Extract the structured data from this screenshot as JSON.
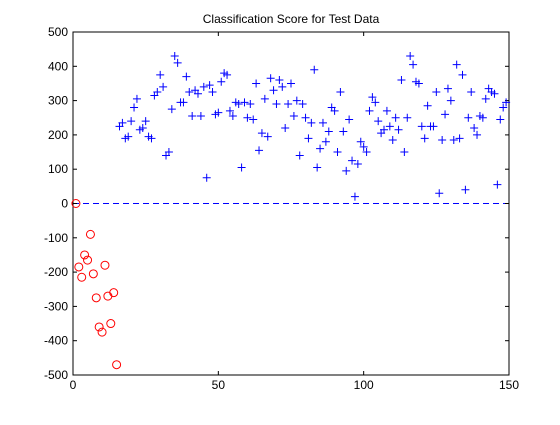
{
  "chart_data": {
    "type": "scatter",
    "title": "Classification Score for Test Data",
    "xlabel": "",
    "ylabel": "",
    "xlim": [
      0,
      150
    ],
    "ylim": [
      -500,
      500
    ],
    "xticks": [
      0,
      50,
      100,
      150
    ],
    "yticks": [
      -500,
      -400,
      -300,
      -200,
      -100,
      0,
      100,
      200,
      300,
      400,
      500
    ],
    "grid": false,
    "legend": "none",
    "reference_line": {
      "y": 0,
      "style": "dashed",
      "color": "#0000ff"
    },
    "series": [
      {
        "marker": "circle",
        "color": "#ff0000",
        "points": [
          [
            1,
            0
          ],
          [
            2,
            -185
          ],
          [
            3,
            -215
          ],
          [
            4,
            -150
          ],
          [
            5,
            -165
          ],
          [
            6,
            -90
          ],
          [
            7,
            -205
          ],
          [
            8,
            -275
          ],
          [
            9,
            -360
          ],
          [
            10,
            -375
          ],
          [
            11,
            -180
          ],
          [
            12,
            -270
          ],
          [
            13,
            -350
          ],
          [
            14,
            -260
          ],
          [
            15,
            -470
          ]
        ]
      },
      {
        "marker": "plus",
        "color": "#0000ff",
        "points": [
          [
            16,
            225
          ],
          [
            17,
            235
          ],
          [
            18,
            190
          ],
          [
            19,
            195
          ],
          [
            20,
            240
          ],
          [
            21,
            280
          ],
          [
            22,
            305
          ],
          [
            23,
            215
          ],
          [
            24,
            220
          ],
          [
            25,
            240
          ],
          [
            26,
            195
          ],
          [
            27,
            190
          ],
          [
            28,
            315
          ],
          [
            29,
            325
          ],
          [
            30,
            375
          ],
          [
            31,
            340
          ],
          [
            32,
            140
          ],
          [
            33,
            150
          ],
          [
            34,
            275
          ],
          [
            35,
            430
          ],
          [
            36,
            410
          ],
          [
            37,
            295
          ],
          [
            38,
            295
          ],
          [
            39,
            370
          ],
          [
            40,
            325
          ],
          [
            41,
            255
          ],
          [
            42,
            330
          ],
          [
            43,
            320
          ],
          [
            44,
            255
          ],
          [
            45,
            340
          ],
          [
            46,
            75
          ],
          [
            47,
            345
          ],
          [
            48,
            325
          ],
          [
            49,
            260
          ],
          [
            50,
            265
          ],
          [
            51,
            355
          ],
          [
            52,
            380
          ],
          [
            53,
            375
          ],
          [
            54,
            270
          ],
          [
            55,
            255
          ],
          [
            56,
            295
          ],
          [
            57,
            290
          ],
          [
            58,
            105
          ],
          [
            59,
            295
          ],
          [
            60,
            250
          ],
          [
            61,
            290
          ],
          [
            62,
            245
          ],
          [
            63,
            350
          ],
          [
            64,
            155
          ],
          [
            65,
            205
          ],
          [
            66,
            305
          ],
          [
            67,
            195
          ],
          [
            68,
            365
          ],
          [
            69,
            330
          ],
          [
            70,
            290
          ],
          [
            71,
            360
          ],
          [
            72,
            340
          ],
          [
            73,
            220
          ],
          [
            74,
            290
          ],
          [
            75,
            350
          ],
          [
            76,
            255
          ],
          [
            77,
            300
          ],
          [
            78,
            140
          ],
          [
            79,
            290
          ],
          [
            80,
            250
          ],
          [
            81,
            190
          ],
          [
            82,
            235
          ],
          [
            83,
            390
          ],
          [
            84,
            105
          ],
          [
            85,
            160
          ],
          [
            86,
            235
          ],
          [
            87,
            180
          ],
          [
            88,
            210
          ],
          [
            89,
            280
          ],
          [
            90,
            270
          ],
          [
            91,
            150
          ],
          [
            92,
            325
          ],
          [
            93,
            210
          ],
          [
            94,
            95
          ],
          [
            95,
            245
          ],
          [
            96,
            125
          ],
          [
            97,
            20
          ],
          [
            98,
            115
          ],
          [
            99,
            180
          ],
          [
            100,
            165
          ],
          [
            101,
            150
          ],
          [
            102,
            270
          ],
          [
            103,
            310
          ],
          [
            104,
            295
          ],
          [
            105,
            240
          ],
          [
            106,
            205
          ],
          [
            107,
            215
          ],
          [
            108,
            270
          ],
          [
            109,
            225
          ],
          [
            110,
            185
          ],
          [
            111,
            250
          ],
          [
            112,
            215
          ],
          [
            113,
            360
          ],
          [
            114,
            150
          ],
          [
            115,
            250
          ],
          [
            116,
            430
          ],
          [
            117,
            405
          ],
          [
            118,
            355
          ],
          [
            119,
            350
          ],
          [
            120,
            225
          ],
          [
            121,
            190
          ],
          [
            122,
            285
          ],
          [
            123,
            225
          ],
          [
            124,
            225
          ],
          [
            125,
            325
          ],
          [
            126,
            30
          ],
          [
            127,
            185
          ],
          [
            128,
            260
          ],
          [
            129,
            335
          ],
          [
            130,
            300
          ],
          [
            131,
            185
          ],
          [
            132,
            405
          ],
          [
            133,
            190
          ],
          [
            134,
            375
          ],
          [
            135,
            40
          ],
          [
            136,
            250
          ],
          [
            137,
            325
          ],
          [
            138,
            220
          ],
          [
            139,
            200
          ],
          [
            140,
            255
          ],
          [
            141,
            250
          ],
          [
            142,
            305
          ],
          [
            143,
            335
          ],
          [
            144,
            325
          ],
          [
            145,
            320
          ],
          [
            146,
            55
          ],
          [
            147,
            245
          ],
          [
            148,
            280
          ],
          [
            149,
            295
          ]
        ]
      }
    ]
  }
}
